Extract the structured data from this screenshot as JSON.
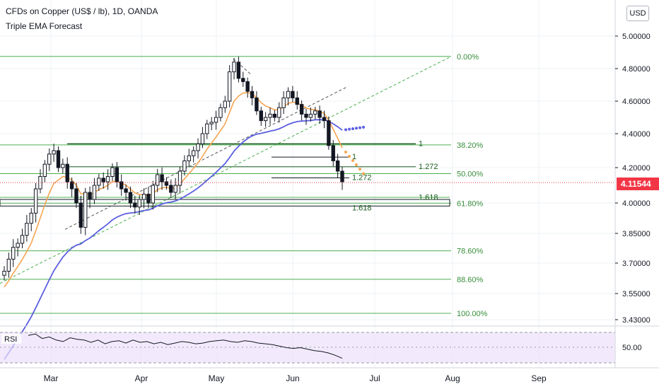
{
  "header": {
    "title": "CFDs on Copper (US$ / lb), 1D, OANDA",
    "subtitle": "Triple EMA Forecast"
  },
  "price_axis": {
    "currency": "USD",
    "last_price": "4.11544",
    "colors": {
      "last_price": "#f23645",
      "up": "#131722",
      "grid": "#e0e3eb"
    }
  },
  "chart_data": {
    "type": "candlestick",
    "instrument": "CFDs on Copper (US$ / lb)",
    "timeframe": "1D",
    "source": "OANDA",
    "x_labels": [
      "Mar",
      "Apr",
      "May",
      "Jun",
      "Jul",
      "Aug",
      "Sep"
    ],
    "y_ticks": [
      "5.00000",
      "4.80000",
      "4.60000",
      "4.40000",
      "4.20000",
      "4.00000",
      "3.85000",
      "3.70000",
      "3.55000",
      "3.43000"
    ],
    "ylim": [
      3.4,
      5.15
    ],
    "last_price": 4.11544,
    "ohlc_close_approx": [
      3.66,
      3.72,
      3.78,
      3.8,
      3.84,
      3.9,
      3.95,
      4.08,
      4.15,
      4.22,
      4.28,
      4.3,
      4.2,
      4.22,
      4.12,
      4.08,
      4.0,
      3.88,
      4.06,
      4.02,
      4.1,
      4.14,
      4.12,
      4.15,
      4.2,
      4.12,
      4.08,
      4.06,
      4.0,
      3.98,
      4.02,
      4.05,
      4.0,
      4.1,
      4.16,
      4.12,
      4.1,
      4.06,
      4.1,
      4.18,
      4.24,
      4.27,
      4.3,
      4.34,
      4.4,
      4.46,
      4.47,
      4.5,
      4.56,
      4.6,
      4.78,
      4.84,
      4.74,
      4.72,
      4.66,
      4.62,
      4.54,
      4.48,
      4.5,
      4.52,
      4.5,
      4.56,
      4.62,
      4.66,
      4.62,
      4.58,
      4.52,
      4.5,
      4.52,
      4.54,
      4.5,
      4.48,
      4.33,
      4.24,
      4.18,
      4.12
    ],
    "fib_levels": [
      {
        "label": "0.00%",
        "price": 4.875
      },
      {
        "label": "38.20%",
        "price": 4.334
      },
      {
        "label": "50.00%",
        "price": 4.166
      },
      {
        "label": "61.80%",
        "price": 3.999
      },
      {
        "label": "78.60%",
        "price": 3.762
      },
      {
        "label": "88.60%",
        "price": 3.62
      },
      {
        "label": "100.00%",
        "price": 3.459
      }
    ],
    "extension_labels": [
      "1",
      "1.272",
      "1.618",
      "1",
      "1.272",
      "1.618"
    ],
    "indicators": [
      {
        "name": "Triple EMA Forecast",
        "color_fast": "#f7a552",
        "color_slow": "#5b5fe0"
      }
    ],
    "rsi": {
      "label": "RSI",
      "tick": "50.00",
      "values": [
        66,
        68,
        62,
        64,
        60,
        58,
        63,
        61,
        60,
        57,
        60,
        55,
        58,
        59,
        56,
        60,
        57,
        58,
        55,
        57,
        54,
        56,
        58,
        57,
        55,
        56,
        58,
        59,
        60,
        58,
        57,
        59,
        58,
        56,
        55,
        54,
        52,
        50,
        49,
        50,
        48,
        46,
        45,
        43,
        40,
        36
      ]
    }
  }
}
